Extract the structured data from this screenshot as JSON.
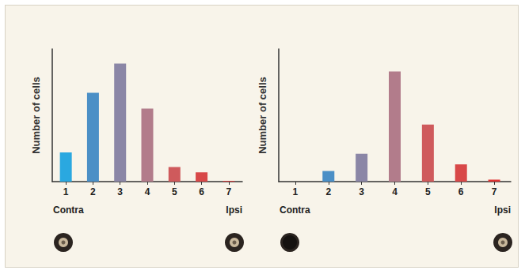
{
  "chart_data": [
    {
      "type": "bar",
      "ylabel": "Number of cells",
      "categories": [
        "1",
        "2",
        "3",
        "4",
        "5",
        "6",
        "7"
      ],
      "values": [
        22,
        67,
        89,
        55,
        11,
        7,
        0.5
      ],
      "colors": [
        "#2aa8e0",
        "#4b8fc6",
        "#8b86a6",
        "#b27c8b",
        "#cf5a5c",
        "#d84848",
        "#e03434"
      ],
      "ylim": [
        0,
        100
      ],
      "tick_labels": "x",
      "grid": false,
      "annotations": [
        "Contra",
        "Ipsi"
      ]
    },
    {
      "type": "bar",
      "ylabel": "Number of cells",
      "categories": [
        "1",
        "2",
        "3",
        "4",
        "5",
        "6",
        "7"
      ],
      "values": [
        0,
        8,
        21,
        83,
        43,
        13,
        1.5
      ],
      "colors": [
        "#2aa8e0",
        "#4b8fc6",
        "#8b86a6",
        "#b27c8b",
        "#cf5a5c",
        "#d84848",
        "#e03434"
      ],
      "ylim": [
        0,
        100
      ],
      "tick_labels": "x",
      "grid": false,
      "annotations": [
        "Contra",
        "Ipsi"
      ]
    }
  ]
}
